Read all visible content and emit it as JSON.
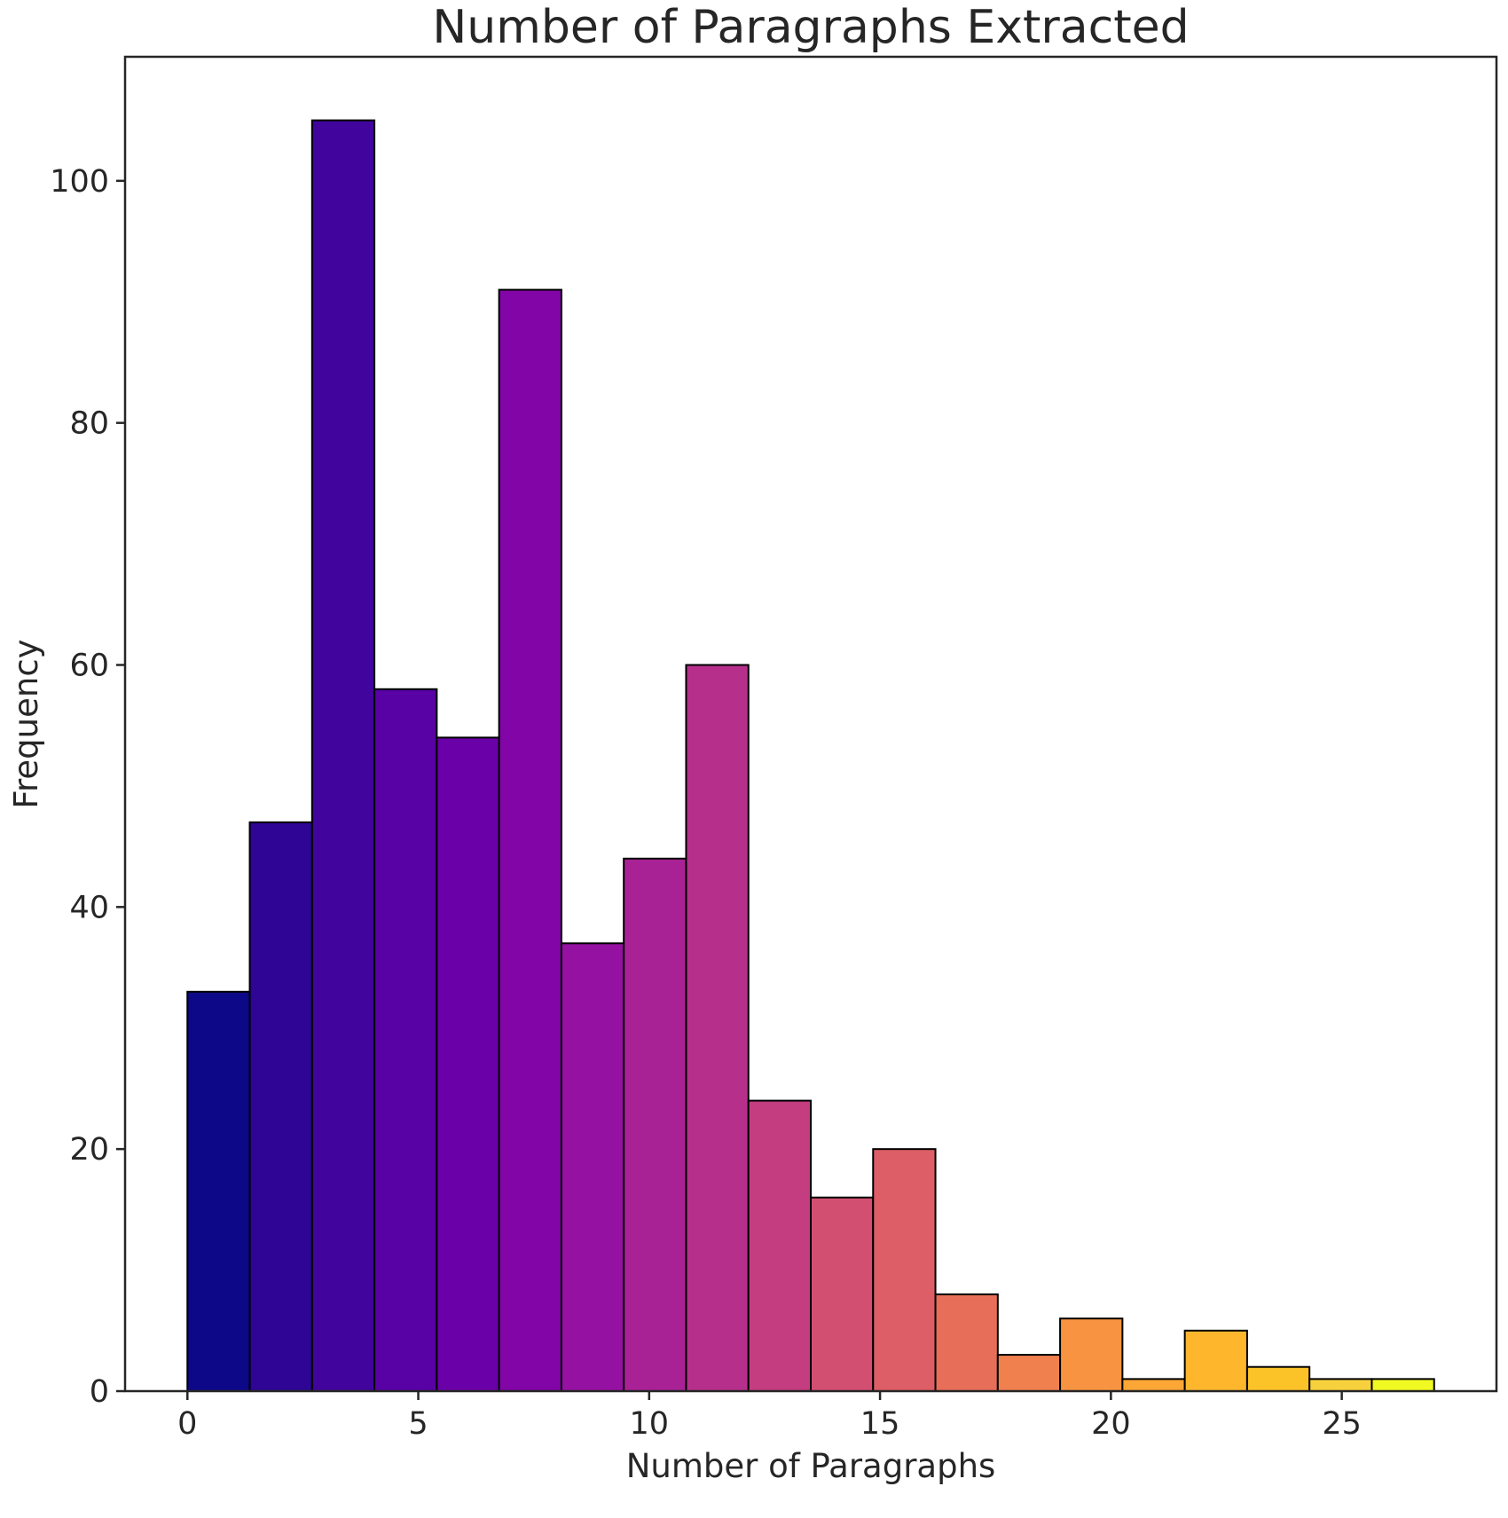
{
  "chart_data": {
    "type": "bar",
    "title": "Number of Paragraphs Extracted",
    "xlabel": "Number of Paragraphs",
    "ylabel": "Frequency",
    "xlim": [
      -1.35,
      28.35
    ],
    "ylim": [
      0,
      110.25
    ],
    "xticks": [
      0,
      5,
      10,
      15,
      20,
      25
    ],
    "yticks": [
      0,
      20,
      40,
      60,
      80,
      100
    ],
    "grid": false,
    "legend": "none",
    "bin_edges": [
      0,
      1.35,
      2.7,
      4.05,
      5.4,
      6.75,
      8.1,
      9.45,
      10.8,
      12.15,
      13.5,
      14.85,
      16.2,
      17.55,
      18.9,
      20.25,
      21.6,
      22.95,
      24.3,
      25.65,
      27
    ],
    "values": [
      33,
      47,
      105,
      58,
      54,
      91,
      37,
      44,
      60,
      24,
      16,
      20,
      8,
      3,
      6,
      1,
      5,
      2,
      1,
      1
    ],
    "colors": [
      "#0d0887",
      "#2e0595",
      "#41049d",
      "#5801a4",
      "#6a00a8",
      "#8205a7",
      "#9511a1",
      "#a82296",
      "#b6308b",
      "#c33d80",
      "#d24f71",
      "#dd5e66",
      "#e76f5a",
      "#f0804e",
      "#f89441",
      "#fca636",
      "#feb72d",
      "#fbc328",
      "#f7d13d",
      "#f0f921"
    ]
  }
}
